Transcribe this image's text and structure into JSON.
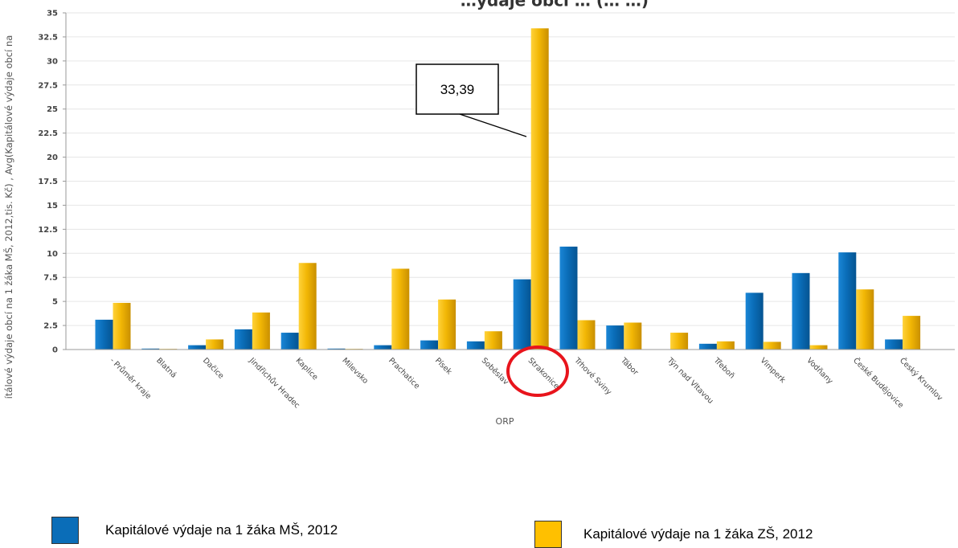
{
  "chart_data": {
    "type": "bar",
    "title": "…ýdaje obcí … (… …)",
    "xlabel": "ORP",
    "ylabel": "ítálové výdaje obcí na 1 žáka MŠ, 2012,tis. Kč) , Avg(Kapitálové výdaje obcí na",
    "ylim": [
      0,
      35
    ],
    "yticks": [
      "0",
      "2.5",
      "5",
      "7.5",
      "10",
      "12.5",
      "15",
      "17.5",
      "20",
      "22.5",
      "25",
      "27.5",
      "30",
      "32.5",
      "35"
    ],
    "categories": [
      "- Průměr kraje",
      "Blatná",
      "Dačice",
      "Jindřichův Hradec",
      "Kaplice",
      "Milevsko",
      "Prachatice",
      "Písek",
      "Soběslav",
      "Strakonice",
      "Trhové Sviny",
      "Tábor",
      "Týn nad Vltavou",
      "Třeboň",
      "Vimperk",
      "Vodňany",
      "České Budějovice",
      "Český Krumlov"
    ],
    "series": [
      {
        "name": "Kapitálové výdaje na 1 žáka MŠ, 2012",
        "color": "#0a6db8",
        "values": [
          3.1,
          0.1,
          0.45,
          2.1,
          1.75,
          0.1,
          0.45,
          0.95,
          0.85,
          7.3,
          10.7,
          2.5,
          0,
          0.6,
          5.9,
          7.95,
          10.1,
          1.05
        ]
      },
      {
        "name": "Kapitálové výdaje na 1 žáka ZŠ, 2012",
        "color": "#f2b705",
        "values": [
          4.85,
          0.05,
          1.05,
          3.85,
          9.0,
          0.05,
          8.4,
          5.2,
          1.9,
          33.39,
          3.05,
          2.8,
          1.75,
          0.85,
          0.8,
          0.45,
          6.25,
          3.5
        ]
      }
    ],
    "grid": true,
    "annotation": {
      "text": "33,39",
      "category": "Strakonice"
    },
    "highlight_category": "Strakonice"
  },
  "legend": [
    {
      "label": "Kapitálové výdaje na 1 žáka MŠ, 2012",
      "color": "#0a6db8"
    },
    {
      "label": "Kapitálové výdaje na 1 žáka ZŠ, 2012",
      "color": "#ffc000"
    }
  ]
}
